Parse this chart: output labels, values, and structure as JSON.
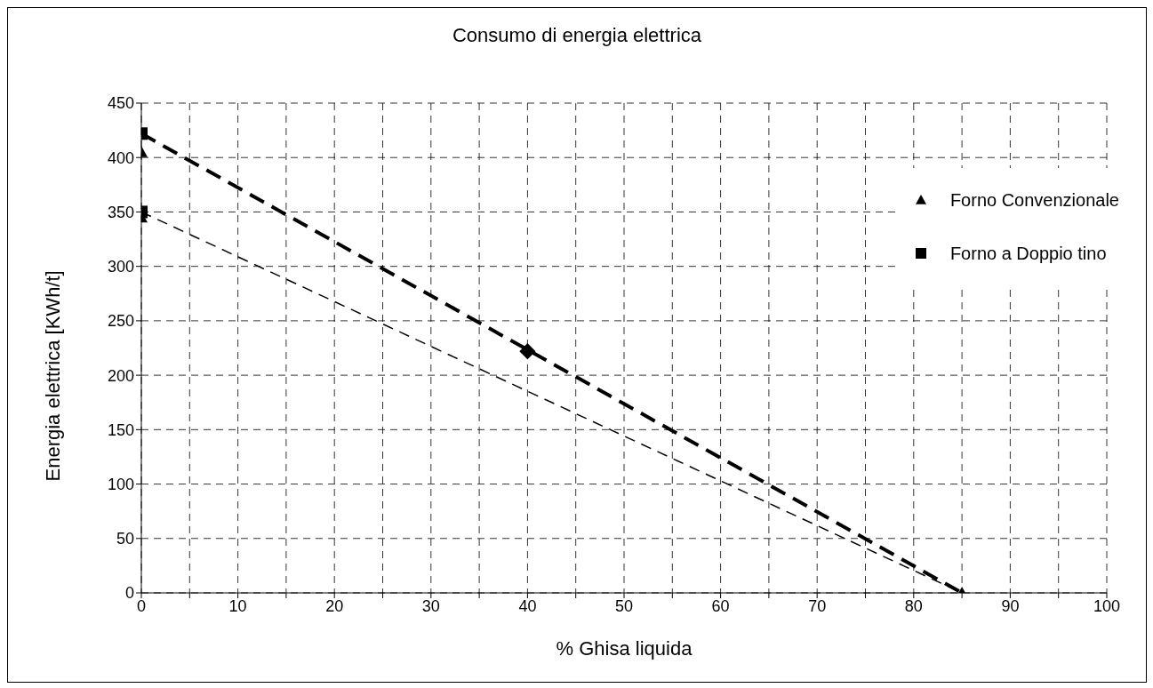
{
  "chart_data": {
    "type": "scatter",
    "title": "Consumo di energia elettrica",
    "xlabel": "% Ghisa liquida",
    "ylabel": "Energia elettrica [KWh/t]",
    "xlim": [
      0,
      100
    ],
    "ylim": [
      0,
      450
    ],
    "xticks": [
      0,
      {
        "value": 5,
        "label": null
      },
      10,
      {
        "value": 15,
        "label": null
      },
      20,
      {
        "value": 25,
        "label": null
      },
      30,
      {
        "value": 35,
        "label": null
      },
      40,
      {
        "value": 45,
        "label": null
      },
      50,
      {
        "value": 55,
        "label": null
      },
      60,
      {
        "value": 65,
        "label": null
      },
      70,
      {
        "value": 75,
        "label": null
      },
      80,
      {
        "value": 85,
        "label": null
      },
      90,
      {
        "value": 95,
        "label": null
      },
      100
    ],
    "yticks": [
      0,
      50,
      100,
      150,
      200,
      250,
      300,
      350,
      400,
      450
    ],
    "grid": true,
    "legend": "right",
    "series": [
      {
        "name": "Forno Convenzionale",
        "marker": "triangle",
        "color": "#000000",
        "x": [
          0,
          0,
          85
        ],
        "values": [
          405,
          345,
          0
        ]
      },
      {
        "name": "Forno a Doppio tino",
        "marker": "square",
        "color": "#000000",
        "x": [
          0,
          0
        ],
        "values": [
          422,
          350
        ]
      },
      {
        "marker": "diamond",
        "color": "#000000",
        "x": [
          40
        ],
        "values": [
          222
        ]
      },
      {
        "type": "line",
        "line_style": "dashed",
        "marker": "none",
        "color": "#000000",
        "x": [
          0,
          85
        ],
        "values": [
          422,
          0
        ]
      },
      {
        "type": "line",
        "line_style": "dashed",
        "marker": "none",
        "color": "#000000",
        "x": [
          0,
          85
        ],
        "values": [
          350,
          0
        ]
      }
    ]
  }
}
